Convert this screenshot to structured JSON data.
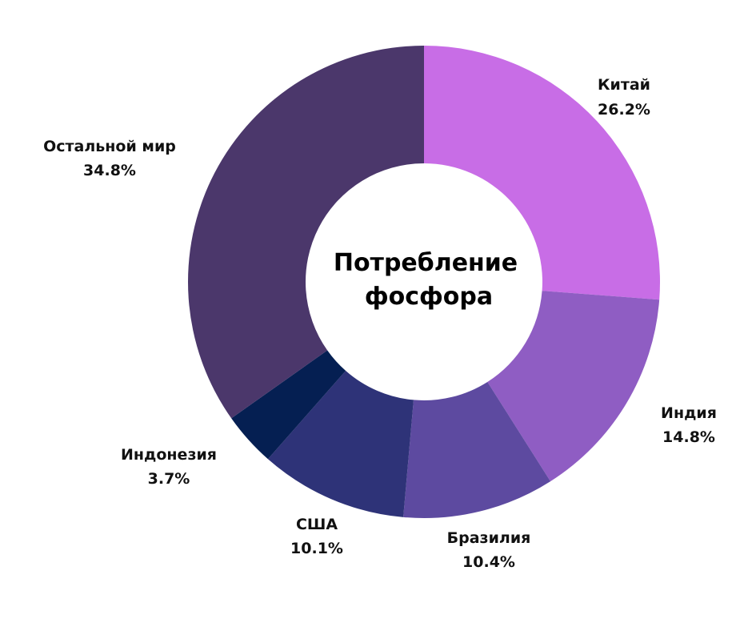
{
  "chart_data": {
    "type": "pie",
    "title": "Потребление фосфора",
    "title_lines": [
      "Потребление",
      "фосфора"
    ],
    "donut": true,
    "slices": [
      {
        "label": "Китай",
        "value": 26.2,
        "value_label": "26.2%",
        "color": "#c86de6"
      },
      {
        "label": "Индия",
        "value": 14.8,
        "value_label": "14.8%",
        "color": "#8f5dc3"
      },
      {
        "label": "Бразилия",
        "value": 10.4,
        "value_label": "10.4%",
        "color": "#5d4aa0"
      },
      {
        "label": "США",
        "value": 10.1,
        "value_label": "10.1%",
        "color": "#2e3378"
      },
      {
        "label": "Индонезия",
        "value": 3.7,
        "value_label": "3.7%",
        "color": "#051f52"
      },
      {
        "label": "Остальной мир",
        "value": 34.8,
        "value_label": "34.8%",
        "color": "#4b376b"
      }
    ]
  }
}
